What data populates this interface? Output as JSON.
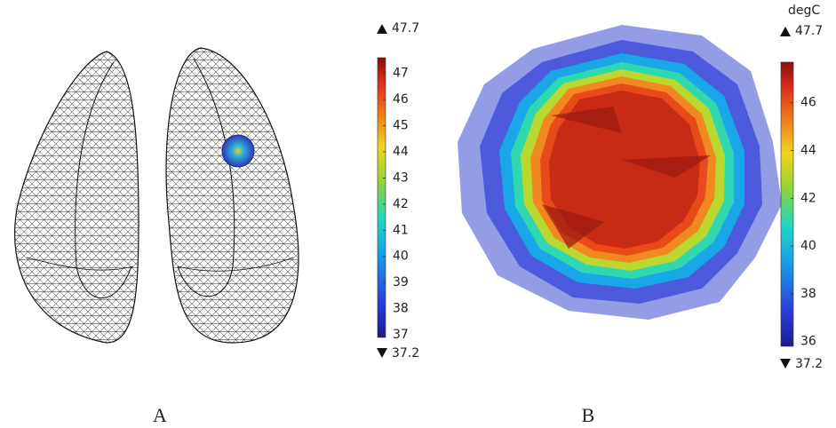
{
  "panels": [
    {
      "label": "A",
      "colorbar": {
        "max": 47.7,
        "min": 37.2,
        "range": [
          36.9,
          47.6
        ],
        "ticks": [
          37,
          38,
          39,
          40,
          41,
          42,
          43,
          44,
          45,
          46,
          47
        ]
      }
    },
    {
      "label": "B",
      "colorbar": {
        "unit": "degC",
        "max": 47.7,
        "min": 37.2,
        "range": [
          35.8,
          47.7
        ],
        "ticks": [
          36,
          38,
          40,
          42,
          44,
          46
        ]
      }
    }
  ]
}
